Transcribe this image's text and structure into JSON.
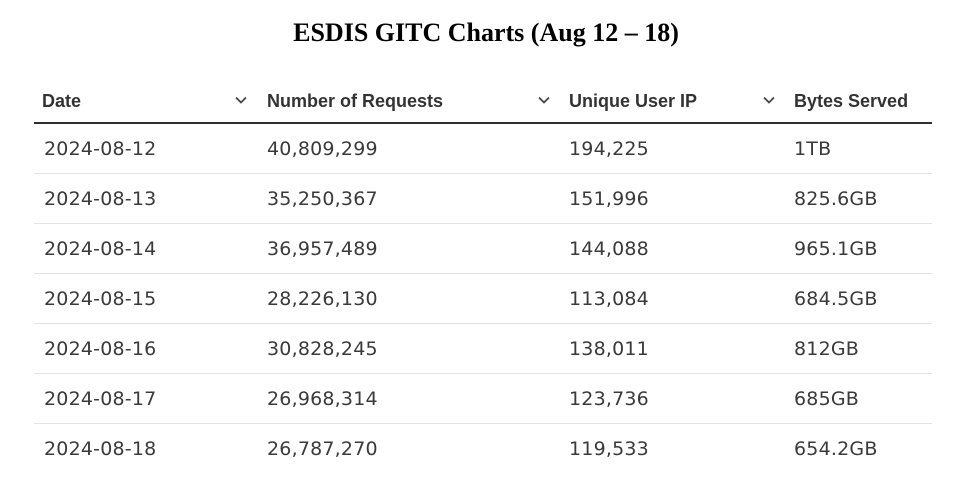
{
  "title": "ESDIS GITC Charts (Aug 12 – 18)",
  "chart_data": {
    "type": "table",
    "title": "ESDIS GITC Charts (Aug 12 – 18)",
    "columns": [
      "Date",
      "Number of Requests",
      "Unique User IP",
      "Bytes Served"
    ],
    "rows": [
      [
        "2024-08-12",
        "40,809,299",
        "194,225",
        "1TB"
      ],
      [
        "2024-08-13",
        "35,250,367",
        "151,996",
        "825.6GB"
      ],
      [
        "2024-08-14",
        "36,957,489",
        "144,088",
        "965.1GB"
      ],
      [
        "2024-08-15",
        "28,226,130",
        "113,084",
        "684.5GB"
      ],
      [
        "2024-08-16",
        "30,828,245",
        "138,011",
        "812GB"
      ],
      [
        "2024-08-17",
        "26,968,314",
        "123,736",
        "685GB"
      ],
      [
        "2024-08-18",
        "26,787,270",
        "119,533",
        "654.2GB"
      ]
    ]
  }
}
